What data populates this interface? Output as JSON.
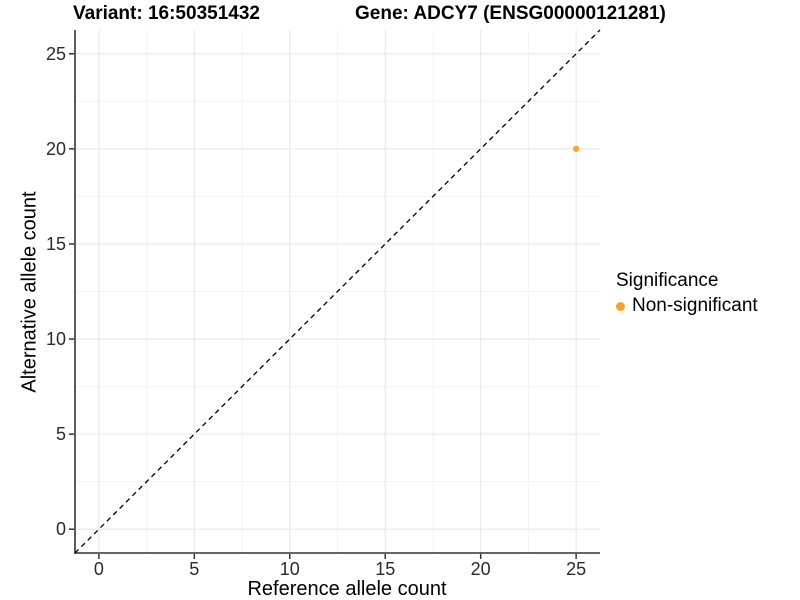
{
  "titles": {
    "variant": "Variant: 16:50351432",
    "gene": "Gene: ADCY7 (ENSG00000121281)"
  },
  "legend": {
    "title": "Significance",
    "items": [
      {
        "label": "Non-significant",
        "color": "#F9A232"
      }
    ]
  },
  "chart_data": {
    "type": "scatter",
    "title": "Variant: 16:50351432    Gene: ADCY7 (ENSG00000121281)",
    "xlabel": "Reference allele count",
    "ylabel": "Alternative allele count",
    "xlim": [
      -1.25,
      26.25
    ],
    "ylim": [
      -1.25,
      26.25
    ],
    "x_ticks": [
      0,
      5,
      10,
      15,
      20,
      25
    ],
    "y_ticks": [
      0,
      5,
      10,
      15,
      20,
      25
    ],
    "x_minor_ticks": [
      2.5,
      7.5,
      12.5,
      17.5,
      22.5
    ],
    "y_minor_ticks": [
      2.5,
      7.5,
      12.5,
      17.5,
      22.5
    ],
    "grid": true,
    "legend_position": "right",
    "series": [
      {
        "name": "Non-significant",
        "color": "#F9A232",
        "points": [
          {
            "x": 25,
            "y": 20
          }
        ]
      }
    ],
    "reference_line": {
      "type": "identity y=x",
      "style": "dashed",
      "color": "#000000"
    }
  },
  "colors": {
    "background": "#ffffff",
    "axis_line": "#333333",
    "tick_label": "#2b2b2b",
    "grid_major": "#e8e8e8",
    "grid_minor": "#f2f2f2",
    "point": "#F9A232"
  }
}
